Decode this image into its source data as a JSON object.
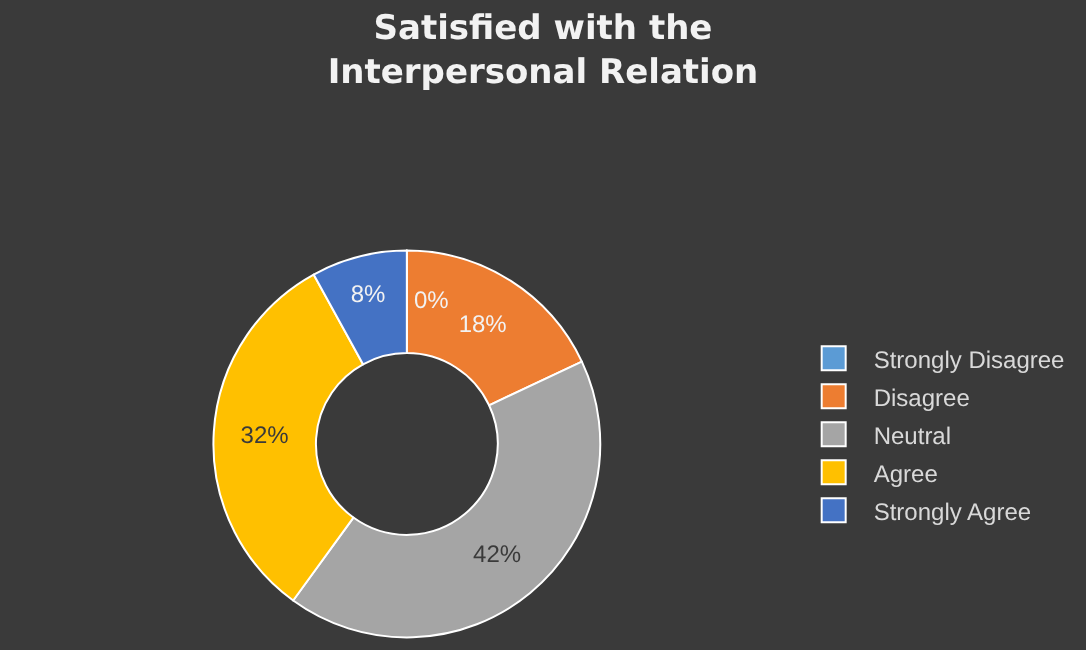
{
  "chart_data": {
    "type": "donut",
    "title": "Satisfied with the Interpersonal Relation",
    "categories": [
      "Strongly Disagree",
      "Disagree",
      "Neutral",
      "Agree",
      "Strongly Agree"
    ],
    "values": [
      0,
      18,
      42,
      32,
      8
    ],
    "colors": [
      "#5b9bd5",
      "#ed7d31",
      "#a5a5a5",
      "#ffc000",
      "#4472c4"
    ],
    "value_labels": [
      "0%",
      "18%",
      "42%",
      "32%",
      "8%"
    ],
    "legend": "right"
  }
}
